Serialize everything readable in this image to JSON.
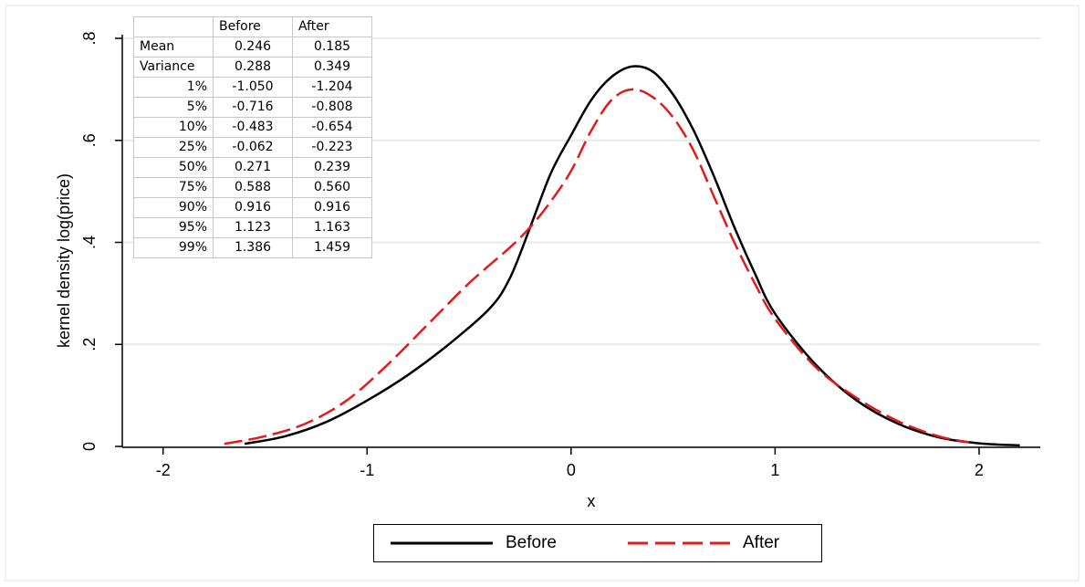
{
  "chart_data": {
    "type": "line",
    "xlabel": "x",
    "ylabel": "kernel density log(price)",
    "xlim": [
      -2.2,
      2.3
    ],
    "ylim": [
      0,
      0.8
    ],
    "xticks": [
      -2,
      -1,
      0,
      1,
      2
    ],
    "xtick_labels": [
      "-2",
      "-1",
      "0",
      "1",
      "2"
    ],
    "yticks": [
      0,
      0.2,
      0.4,
      0.6,
      0.8
    ],
    "ytick_labels": [
      "0",
      ".2",
      ".4",
      ".6",
      ".8"
    ],
    "grid": "horizontal",
    "legend_position": "bottom",
    "series": [
      {
        "name": "Before",
        "color": "#000000",
        "style": "solid",
        "x": [
          -1.6,
          -1.4,
          -1.2,
          -1.0,
          -0.8,
          -0.6,
          -0.4,
          -0.3,
          -0.2,
          -0.1,
          0.0,
          0.1,
          0.2,
          0.3,
          0.4,
          0.5,
          0.6,
          0.7,
          0.8,
          0.9,
          1.0,
          1.2,
          1.4,
          1.6,
          1.8,
          2.0,
          2.2
        ],
        "y": [
          0.005,
          0.02,
          0.048,
          0.09,
          0.14,
          0.2,
          0.27,
          0.33,
          0.43,
          0.535,
          0.61,
          0.68,
          0.725,
          0.745,
          0.735,
          0.69,
          0.62,
          0.53,
          0.43,
          0.34,
          0.26,
          0.16,
          0.09,
          0.045,
          0.018,
          0.006,
          0.002
        ]
      },
      {
        "name": "After",
        "color": "#e31a1c",
        "style": "dashed",
        "x": [
          -1.7,
          -1.5,
          -1.3,
          -1.1,
          -0.9,
          -0.7,
          -0.5,
          -0.3,
          -0.2,
          -0.1,
          0.0,
          0.1,
          0.2,
          0.3,
          0.4,
          0.5,
          0.6,
          0.7,
          0.8,
          0.9,
          1.0,
          1.2,
          1.4,
          1.6,
          1.8,
          1.95
        ],
        "y": [
          0.005,
          0.02,
          0.045,
          0.09,
          0.16,
          0.24,
          0.32,
          0.39,
          0.43,
          0.48,
          0.54,
          0.62,
          0.68,
          0.7,
          0.685,
          0.645,
          0.58,
          0.49,
          0.4,
          0.32,
          0.25,
          0.155,
          0.095,
          0.05,
          0.02,
          0.008
        ]
      }
    ]
  },
  "table": {
    "columns": [
      "",
      "Before",
      "After"
    ],
    "rows": [
      {
        "label": "Mean",
        "before": "0.246",
        "after": "0.185"
      },
      {
        "label": "Variance",
        "before": "0.288",
        "after": "0.349"
      },
      {
        "label": "1%",
        "before": "-1.050",
        "after": "-1.204"
      },
      {
        "label": "5%",
        "before": "-0.716",
        "after": "-0.808"
      },
      {
        "label": "10%",
        "before": "-0.483",
        "after": "-0.654"
      },
      {
        "label": "25%",
        "before": "-0.062",
        "after": "-0.223"
      },
      {
        "label": "50%",
        "before": "0.271",
        "after": "0.239"
      },
      {
        "label": "75%",
        "before": "0.588",
        "after": "0.560"
      },
      {
        "label": "90%",
        "before": "0.916",
        "after": "0.916"
      },
      {
        "label": "95%",
        "before": "1.123",
        "after": "1.163"
      },
      {
        "label": "99%",
        "before": "1.386",
        "after": "1.459"
      }
    ]
  }
}
